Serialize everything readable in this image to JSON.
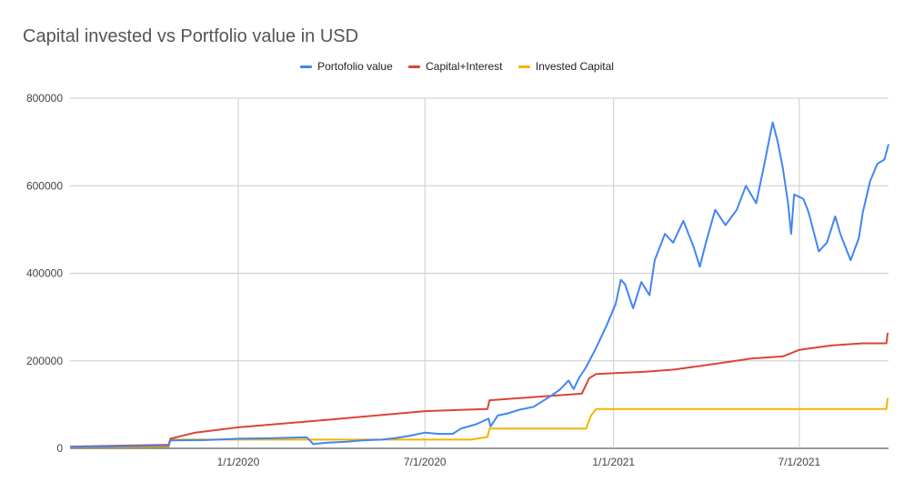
{
  "chart_data": {
    "type": "line",
    "title": "Capital invested vs Portfolio value in USD",
    "xlabel": "",
    "ylabel": "",
    "x_range": [
      "2019-07-21",
      "2021-09-26"
    ],
    "ylim": [
      0,
      800000
    ],
    "grid": true,
    "legend_position": "top",
    "y_ticks": [
      0,
      200000,
      400000,
      600000,
      800000
    ],
    "y_tick_labels": [
      "0",
      "200000",
      "400000",
      "600000",
      "800000"
    ],
    "x_ticks": [
      "2020-01-01",
      "2020-07-01",
      "2021-01-01",
      "2021-07-01"
    ],
    "x_tick_labels": [
      "1/1/2020",
      "7/1/2020",
      "1/1/2021",
      "7/1/2021"
    ],
    "series": [
      {
        "name": "Portofolio value",
        "color": "#4285f4",
        "points": [
          [
            "2019-07-21",
            3000
          ],
          [
            "2019-10-25",
            6000
          ],
          [
            "2019-10-27",
            18000
          ],
          [
            "2019-11-30",
            19000
          ],
          [
            "2020-01-01",
            22000
          ],
          [
            "2020-02-01",
            23000
          ],
          [
            "2020-03-01",
            25000
          ],
          [
            "2020-03-08",
            25000
          ],
          [
            "2020-03-14",
            10000
          ],
          [
            "2020-03-28",
            13000
          ],
          [
            "2020-04-15",
            15000
          ],
          [
            "2020-05-01",
            18000
          ],
          [
            "2020-05-20",
            20000
          ],
          [
            "2020-06-01",
            23000
          ],
          [
            "2020-06-15",
            28000
          ],
          [
            "2020-07-01",
            36000
          ],
          [
            "2020-07-15",
            33000
          ],
          [
            "2020-07-28",
            33000
          ],
          [
            "2020-08-05",
            45000
          ],
          [
            "2020-08-20",
            55000
          ],
          [
            "2020-09-01",
            68000
          ],
          [
            "2020-09-03",
            50000
          ],
          [
            "2020-09-10",
            75000
          ],
          [
            "2020-09-20",
            80000
          ],
          [
            "2020-10-01",
            88000
          ],
          [
            "2020-10-15",
            95000
          ],
          [
            "2020-11-01",
            120000
          ],
          [
            "2020-11-10",
            135000
          ],
          [
            "2020-11-18",
            155000
          ],
          [
            "2020-11-23",
            135000
          ],
          [
            "2020-11-28",
            160000
          ],
          [
            "2020-12-05",
            185000
          ],
          [
            "2020-12-15",
            230000
          ],
          [
            "2020-12-25",
            280000
          ],
          [
            "2021-01-03",
            330000
          ],
          [
            "2021-01-08",
            385000
          ],
          [
            "2021-01-12",
            375000
          ],
          [
            "2021-01-20",
            320000
          ],
          [
            "2021-01-28",
            380000
          ],
          [
            "2021-02-05",
            350000
          ],
          [
            "2021-02-10",
            430000
          ],
          [
            "2021-02-20",
            490000
          ],
          [
            "2021-02-28",
            470000
          ],
          [
            "2021-03-10",
            520000
          ],
          [
            "2021-03-20",
            460000
          ],
          [
            "2021-03-26",
            415000
          ],
          [
            "2021-04-01",
            470000
          ],
          [
            "2021-04-10",
            545000
          ],
          [
            "2021-04-20",
            510000
          ],
          [
            "2021-05-01",
            545000
          ],
          [
            "2021-05-10",
            600000
          ],
          [
            "2021-05-20",
            560000
          ],
          [
            "2021-05-28",
            650000
          ],
          [
            "2021-06-05",
            745000
          ],
          [
            "2021-06-10",
            700000
          ],
          [
            "2021-06-15",
            640000
          ],
          [
            "2021-06-20",
            560000
          ],
          [
            "2021-06-23",
            490000
          ],
          [
            "2021-06-26",
            580000
          ],
          [
            "2021-07-05",
            570000
          ],
          [
            "2021-07-10",
            540000
          ],
          [
            "2021-07-20",
            450000
          ],
          [
            "2021-07-28",
            470000
          ],
          [
            "2021-08-01",
            500000
          ],
          [
            "2021-08-05",
            530000
          ],
          [
            "2021-08-10",
            490000
          ],
          [
            "2021-08-15",
            460000
          ],
          [
            "2021-08-20",
            430000
          ],
          [
            "2021-08-28",
            480000
          ],
          [
            "2021-09-01",
            540000
          ],
          [
            "2021-09-08",
            610000
          ],
          [
            "2021-09-15",
            650000
          ],
          [
            "2021-09-22",
            660000
          ],
          [
            "2021-09-26",
            695000
          ]
        ]
      },
      {
        "name": "Capital+Interest",
        "color": "#db4437",
        "points": [
          [
            "2019-07-21",
            4000
          ],
          [
            "2019-10-25",
            8000
          ],
          [
            "2019-10-27",
            22000
          ],
          [
            "2019-11-20",
            36000
          ],
          [
            "2020-01-01",
            48000
          ],
          [
            "2020-04-01",
            66000
          ],
          [
            "2020-07-01",
            85000
          ],
          [
            "2020-08-31",
            90000
          ],
          [
            "2020-09-02",
            110000
          ],
          [
            "2020-11-01",
            120000
          ],
          [
            "2020-12-01",
            125000
          ],
          [
            "2020-12-08",
            160000
          ],
          [
            "2020-12-15",
            170000
          ],
          [
            "2021-02-01",
            175000
          ],
          [
            "2021-03-01",
            180000
          ],
          [
            "2021-04-15",
            195000
          ],
          [
            "2021-05-15",
            205000
          ],
          [
            "2021-06-15",
            210000
          ],
          [
            "2021-07-01",
            225000
          ],
          [
            "2021-08-01",
            235000
          ],
          [
            "2021-09-01",
            240000
          ],
          [
            "2021-09-24",
            240000
          ],
          [
            "2021-09-25",
            262000
          ],
          [
            "2021-09-26",
            262000
          ]
        ]
      },
      {
        "name": "Invested Capital",
        "color": "#f4b400",
        "points": [
          [
            "2019-07-21",
            2000
          ],
          [
            "2019-10-25",
            3000
          ],
          [
            "2019-10-27",
            20000
          ],
          [
            "2020-08-15",
            20000
          ],
          [
            "2020-08-31",
            26000
          ],
          [
            "2020-09-02",
            45000
          ],
          [
            "2020-12-05",
            45000
          ],
          [
            "2020-12-10",
            75000
          ],
          [
            "2020-12-15",
            90000
          ],
          [
            "2021-09-24",
            90000
          ],
          [
            "2021-09-25",
            113000
          ],
          [
            "2021-09-26",
            113000
          ]
        ]
      }
    ]
  }
}
